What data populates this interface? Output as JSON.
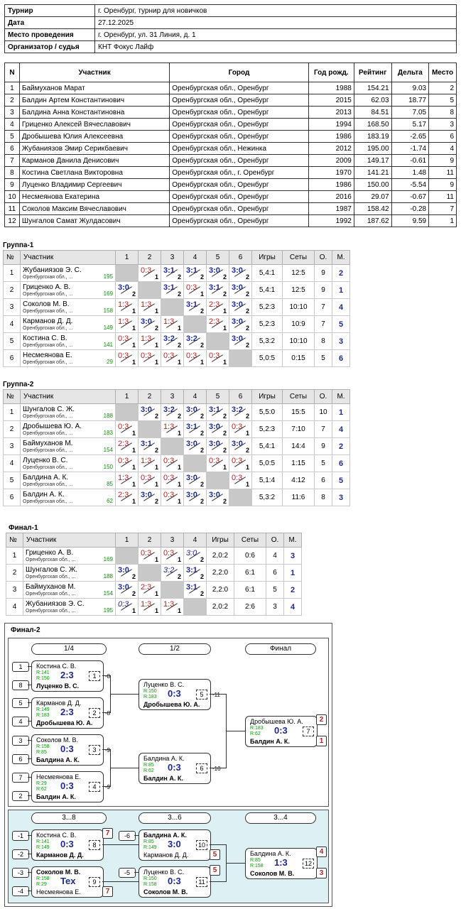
{
  "info": [
    {
      "k": "Турнир",
      "v": "г. Оренбург, турнир для новичков"
    },
    {
      "k": "Дата",
      "v": "27.12.2025"
    },
    {
      "k": "Место проведения",
      "v": "г. Оренбург, ул. 31 Линия, д. 1"
    },
    {
      "k": "Организатор / судья",
      "v": "КНТ Фокус Лайф"
    }
  ],
  "participants": {
    "headers": [
      "N",
      "Участник",
      "Город",
      "Год рожд.",
      "Рейтинг",
      "Дельта",
      "Место"
    ],
    "rows": [
      [
        "1",
        "Баймуханов Марат",
        "Оренбургская обл., Оренбург",
        "1988",
        "154.21",
        "9.03",
        "2"
      ],
      [
        "2",
        "Балдин Артем Константинович",
        "Оренбургская обл., Оренбург",
        "2015",
        "62.03",
        "18.77",
        "5"
      ],
      [
        "3",
        "Балдина Анна Константиновна",
        "Оренбургская обл., Оренбург",
        "2013",
        "84.51",
        "7.05",
        "8"
      ],
      [
        "4",
        "Гриценко Алексей Вячеславович",
        "Оренбургская обл., Оренбург",
        "1994",
        "168.50",
        "5.17",
        "3"
      ],
      [
        "5",
        "Дробышева Юлия Алексеевна",
        "Оренбургская обл., Оренбург",
        "1986",
        "183.19",
        "-2.65",
        "6"
      ],
      [
        "6",
        "Жубаниязов Эмир Серикбаевич",
        "Оренбургская обл., Нежинка",
        "2012",
        "195.00",
        "-1.74",
        "4"
      ],
      [
        "7",
        "Карманов Данила Денисович",
        "Оренбургская обл., Оренбург",
        "2009",
        "149.17",
        "-0.61",
        "9"
      ],
      [
        "8",
        "Костина Светлана Викторовна",
        "Оренбургская обл., г. Оренбург",
        "1970",
        "141.21",
        "1.48",
        "11"
      ],
      [
        "9",
        "Луценко Владимир Сергеевич",
        "Оренбургская обл., Оренбург",
        "1986",
        "150.00",
        "-5.54",
        "9"
      ],
      [
        "10",
        "Несмеянова Екатерина",
        "Оренбургская обл., Оренбург",
        "2016",
        "29.07",
        "-0.67",
        "11"
      ],
      [
        "11",
        "Соколов Максим Вячеславович",
        "Оренбургская обл., Оренбург",
        "1987",
        "158.42",
        "-0.28",
        "7"
      ],
      [
        "12",
        "Шунгалов Самат Жулдасович",
        "Оренбургская обл., Оренбург",
        "1992",
        "187.62",
        "9.59",
        "1"
      ]
    ]
  },
  "group_headers": {
    "n": "№",
    "name": "Участник",
    "games": "Игры",
    "sets": "Сеты",
    "pts": "О.",
    "place": "М."
  },
  "groups": [
    {
      "title": "Группа-1",
      "rows": [
        {
          "n": "1",
          "name": "Жубаниязов Э. С.",
          "city": "Оренбургская обл., ...",
          "rating": "195",
          "scores": [
            null,
            [
              "0:3",
              "1",
              "l"
            ],
            [
              "3:1",
              "2",
              "w"
            ],
            [
              "3:1",
              "2",
              "w"
            ],
            [
              "3:0",
              "2",
              "w"
            ],
            [
              "3:0",
              "2",
              "w"
            ]
          ],
          "games": "5,4:1",
          "sets": "12:5",
          "pts": "9",
          "place": "2"
        },
        {
          "n": "2",
          "name": "Гриценко А. В.",
          "city": "Оренбургская обл., ...",
          "rating": "169",
          "scores": [
            [
              "3:0",
              "2",
              "w"
            ],
            null,
            [
              "3:1",
              "2",
              "w"
            ],
            [
              "0:3",
              "1",
              "l"
            ],
            [
              "3:1",
              "2",
              "w"
            ],
            [
              "3:0",
              "2",
              "w"
            ]
          ],
          "games": "5,4:1",
          "sets": "12:5",
          "pts": "9",
          "place": "1"
        },
        {
          "n": "3",
          "name": "Соколов М. В.",
          "city": "Оренбургская обл., ...",
          "rating": "158",
          "scores": [
            [
              "1:3",
              "1",
              "l"
            ],
            [
              "1:3",
              "1",
              "l"
            ],
            null,
            [
              "3:1",
              "2",
              "w"
            ],
            [
              "2:3",
              "1",
              "l"
            ],
            [
              "3:0",
              "2",
              "w"
            ]
          ],
          "games": "5,2:3",
          "sets": "10:10",
          "pts": "7",
          "place": "4"
        },
        {
          "n": "4",
          "name": "Карманов Д. Д.",
          "city": "Оренбургская обл., ...",
          "rating": "149",
          "scores": [
            [
              "1:3",
              "1",
              "l"
            ],
            [
              "3:0",
              "2",
              "w"
            ],
            [
              "1:3",
              "1",
              "l"
            ],
            null,
            [
              "2:3",
              "1",
              "l"
            ],
            [
              "3:0",
              "2",
              "w"
            ]
          ],
          "games": "5,2:3",
          "sets": "10:9",
          "pts": "7",
          "place": "5"
        },
        {
          "n": "5",
          "name": "Костина С. В.",
          "city": "Оренбургская обл., ...",
          "rating": "141",
          "scores": [
            [
              "0:3",
              "1",
              "l"
            ],
            [
              "1:3",
              "1",
              "l"
            ],
            [
              "3:2",
              "2",
              "w"
            ],
            [
              "3:2",
              "2",
              "w"
            ],
            null,
            [
              "3:0",
              "2",
              "w"
            ]
          ],
          "games": "5,3:2",
          "sets": "10:10",
          "pts": "8",
          "place": "3"
        },
        {
          "n": "6",
          "name": "Несмеянова Е.",
          "city": "Оренбургская обл., ...",
          "rating": "29",
          "scores": [
            [
              "0:3",
              "1",
              "l"
            ],
            [
              "0:3",
              "1",
              "l"
            ],
            [
              "0:3",
              "1",
              "l"
            ],
            [
              "0:3",
              "1",
              "l"
            ],
            [
              "0:3",
              "1",
              "l"
            ],
            null
          ],
          "games": "5,0:5",
          "sets": "0:15",
          "pts": "5",
          "place": "6"
        }
      ]
    },
    {
      "title": "Группа-2",
      "rows": [
        {
          "n": "1",
          "name": "Шунгалов С. Ж.",
          "city": "Оренбургская обл., ...",
          "rating": "188",
          "scores": [
            null,
            [
              "3:0",
              "2",
              "w"
            ],
            [
              "3:2",
              "2",
              "w"
            ],
            [
              "3:0",
              "2",
              "w"
            ],
            [
              "3:1",
              "2",
              "w"
            ],
            [
              "3:2",
              "2",
              "w"
            ]
          ],
          "games": "5,5:0",
          "sets": "15:5",
          "pts": "10",
          "place": "1"
        },
        {
          "n": "2",
          "name": "Дробышева Ю. А.",
          "city": "Оренбургская обл., ...",
          "rating": "183",
          "scores": [
            [
              "0:3",
              "1",
              "l"
            ],
            null,
            [
              "1:3",
              "1",
              "l"
            ],
            [
              "3:1",
              "2",
              "w"
            ],
            [
              "3:0",
              "2",
              "w"
            ],
            [
              "0:3",
              "1",
              "l"
            ]
          ],
          "games": "5,2:3",
          "sets": "7:10",
          "pts": "7",
          "place": "4"
        },
        {
          "n": "3",
          "name": "Баймуханов М.",
          "city": "Оренбургская обл., ...",
          "rating": "154",
          "scores": [
            [
              "2:3",
              "1",
              "l"
            ],
            [
              "3:1",
              "2",
              "w"
            ],
            null,
            [
              "3:0",
              "2",
              "w"
            ],
            [
              "3:0",
              "2",
              "w"
            ],
            [
              "3:0",
              "2",
              "w"
            ]
          ],
          "games": "5,4:1",
          "sets": "14:4",
          "pts": "9",
          "place": "2"
        },
        {
          "n": "4",
          "name": "Луценко В. С.",
          "city": "Оренбургская обл., ...",
          "rating": "150",
          "scores": [
            [
              "0:3",
              "1",
              "l"
            ],
            [
              "1:3",
              "1",
              "l"
            ],
            [
              "0:3",
              "1",
              "l"
            ],
            null,
            [
              "0:3",
              "1",
              "l"
            ],
            [
              "0:3",
              "1",
              "l"
            ]
          ],
          "games": "5,0:5",
          "sets": "1:15",
          "pts": "5",
          "place": "6"
        },
        {
          "n": "5",
          "name": "Балдина А. К.",
          "city": "Оренбургская обл., ...",
          "rating": "85",
          "scores": [
            [
              "1:3",
              "1",
              "l"
            ],
            [
              "0:3",
              "1",
              "l"
            ],
            [
              "0:3",
              "1",
              "l"
            ],
            [
              "3:0",
              "2",
              "w"
            ],
            null,
            [
              "0:3",
              "1",
              "l"
            ]
          ],
          "games": "5,1:4",
          "sets": "4:12",
          "pts": "6",
          "place": "5"
        },
        {
          "n": "6",
          "name": "Балдин А. К.",
          "city": "Оренбургская обл., ...",
          "rating": "62",
          "scores": [
            [
              "2:3",
              "1",
              "l"
            ],
            [
              "3:0",
              "2",
              "w"
            ],
            [
              "0:3",
              "1",
              "l"
            ],
            [
              "3:0",
              "2",
              "w"
            ],
            [
              "3:0",
              "2",
              "w"
            ],
            null
          ],
          "games": "5,3:2",
          "sets": "11:6",
          "pts": "8",
          "place": "3"
        }
      ]
    },
    {
      "title": "Финал-1",
      "rows": [
        {
          "n": "1",
          "name": "Гриценко А. В.",
          "city": "Оренбургская обл., ...",
          "rating": "169",
          "scores": [
            null,
            [
              "0:3",
              "1",
              "l"
            ],
            [
              "0:3",
              "1",
              "l"
            ],
            [
              "3:0",
              "2",
              "i"
            ]
          ],
          "games": "2,0:2",
          "sets": "0:6",
          "pts": "4",
          "place": "3"
        },
        {
          "n": "2",
          "name": "Шунгалов С. Ж.",
          "city": "Оренбургская обл., ...",
          "rating": "188",
          "scores": [
            [
              "3:0",
              "2",
              "w"
            ],
            null,
            [
              "3:2",
              "2",
              "i"
            ],
            [
              "3:1",
              "2",
              "w"
            ]
          ],
          "games": "2,2:0",
          "sets": "6:1",
          "pts": "6",
          "place": "1"
        },
        {
          "n": "3",
          "name": "Баймуханов М.",
          "city": "Оренбургская обл., ...",
          "rating": "154",
          "scores": [
            [
              "3:0",
              "2",
              "w"
            ],
            [
              "2:3",
              "1",
              "l"
            ],
            null,
            [
              "3:1",
              "2",
              "w"
            ]
          ],
          "games": "2,2:0",
          "sets": "6:1",
          "pts": "5",
          "place": "2"
        },
        {
          "n": "4",
          "name": "Жубаниязов Э. С.",
          "city": "Оренбургская обл., ...",
          "rating": "195",
          "scores": [
            [
              "0:3",
              "1",
              "i"
            ],
            [
              "1:3",
              "1",
              "l"
            ],
            [
              "1:3",
              "1",
              "l"
            ],
            null
          ],
          "games": "2,0:2",
          "sets": "2:6",
          "pts": "3",
          "place": "4"
        }
      ]
    }
  ],
  "final2": {
    "title": "Финал-2",
    "rounds": [
      "1/4",
      "1/2",
      "Финал"
    ],
    "rounds2": [
      "3...8",
      "3...6",
      "3...4"
    ],
    "seeds": [
      "1",
      "8",
      "5",
      "4",
      "3",
      "6",
      "7",
      "2"
    ],
    "seeds2": [
      "-1",
      "-2",
      "-3",
      "-4",
      "-6",
      "-5"
    ],
    "matches": [
      {
        "a": "Костина С. В.",
        "b": "Луценко В. С.",
        "ra": "R:141",
        "rb": "R:150",
        "score": "2:3",
        "num": "1",
        "wb": "b",
        "note": "-8"
      },
      {
        "a": "Карманов Д. Д.",
        "b": "Дробышева Ю. А.",
        "ra": "R:149",
        "rb": "R:183",
        "score": "2:3",
        "num": "2",
        "wb": "b",
        "note": "-8"
      },
      {
        "a": "Соколов М. В.",
        "b": "Балдина А. К.",
        "ra": "R:158",
        "rb": "R:85",
        "score": "0:3",
        "num": "3",
        "wb": "b",
        "note": "-9"
      },
      {
        "a": "Несмеянова Е.",
        "b": "Балдин А. К.",
        "ra": "R:29",
        "rb": "R:62",
        "score": "0:3",
        "num": "4",
        "wb": "b",
        "note": "-9"
      },
      {
        "a": "Луценко В. С.",
        "b": "Дробышева Ю. А.",
        "ra": "R:150",
        "rb": "R:183",
        "score": "0:3",
        "num": "5",
        "wb": "b",
        "note": "-11"
      },
      {
        "a": "Балдина А. К.",
        "b": "Балдин А. К.",
        "ra": "R:85",
        "rb": "R:62",
        "score": "0:3",
        "num": "6",
        "wb": "b",
        "note": "-10"
      },
      {
        "a": "Дробышева Ю. А.",
        "b": "Балдин А. К.",
        "ra": "R:183",
        "rb": "R:62",
        "score": "0:3",
        "num": "7",
        "wb": "b",
        "la": "2",
        "lb": "1"
      },
      {
        "a": "Костина С. В.",
        "b": "Карманов Д. Д.",
        "ra": "R:141",
        "rb": "R:149",
        "score": "0:3",
        "num": "8",
        "wb": "b",
        "la": "7"
      },
      {
        "a": "Соколов М. В.",
        "b": "Несмеянова Е.",
        "ra": "R:158",
        "rb": "R:29",
        "score": "Tex",
        "num": "9",
        "wb": "a",
        "lb": "7"
      },
      {
        "a": "Балдина А. К.",
        "b": "Карманов Д. Д.",
        "ra": "R:85",
        "rb": "R:149",
        "score": "3:0",
        "num": "10",
        "wb": "a",
        "lb": "5"
      },
      {
        "a": "Луценко В. С.",
        "b": "Соколов М. В.",
        "ra": "R:150",
        "rb": "R:158",
        "score": "0:3",
        "num": "11",
        "wb": "b",
        "la": "5"
      },
      {
        "a": "Балдина А. К.",
        "b": "Соколов М. В.",
        "ra": "R:85",
        "rb": "R:158",
        "score": "1:3",
        "num": "12",
        "wb": "b",
        "la": "4",
        "lb": "3"
      }
    ]
  },
  "colors": {
    "win": "#1f2a8a",
    "loss": "#b22222",
    "rating": "#009900",
    "bracket_bg": "#ddf1f4"
  }
}
